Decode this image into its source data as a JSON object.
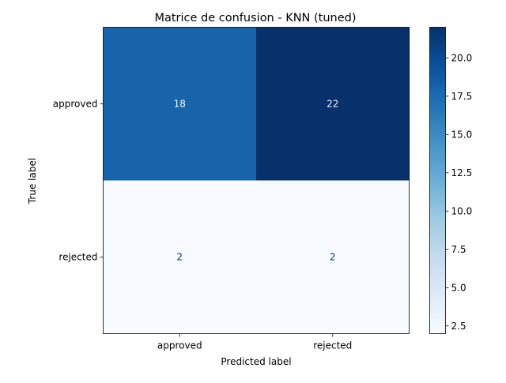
{
  "chart_data": {
    "type": "heatmap",
    "title": "Matrice de confusion - KNN (tuned)",
    "xlabel": "Predicted label",
    "ylabel": "True label",
    "x_categories": [
      "approved",
      "rejected"
    ],
    "y_categories": [
      "approved",
      "rejected"
    ],
    "values": [
      [
        18,
        22
      ],
      [
        2,
        2
      ]
    ],
    "colormap": "Blues",
    "colorbar": {
      "min": 2,
      "max": 22,
      "ticks": [
        2.5,
        5.0,
        7.5,
        10.0,
        12.5,
        15.0,
        17.5,
        20.0
      ],
      "tick_labels": [
        "2.5",
        "5.0",
        "7.5",
        "10.0",
        "12.5",
        "15.0",
        "17.5",
        "20.0"
      ]
    }
  }
}
